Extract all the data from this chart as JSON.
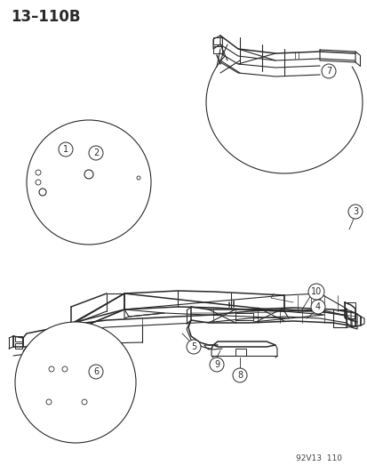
{
  "title_label": "13–110B",
  "title_fontsize": 12,
  "title_fontweight": "bold",
  "watermark": "92V13  110",
  "watermark_fontsize": 6.5,
  "bg_color": "#ffffff",
  "line_color": "#2a2a2a",
  "fig_w": 4.14,
  "fig_h": 5.33,
  "dpi": 100
}
